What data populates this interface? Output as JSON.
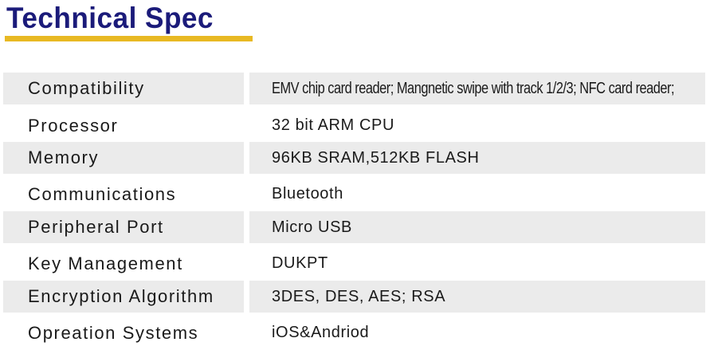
{
  "title": "Technical Spec",
  "colors": {
    "title": "#1b1b7a",
    "underline": "#e8b923",
    "row_shade": "#ebebeb"
  },
  "specs": [
    {
      "label": "Compatibility",
      "value": "EMV chip card reader; Mangnetic swipe with track 1/2/3; NFC card reader;"
    },
    {
      "label": "Processor",
      "value": "32 bit ARM CPU"
    },
    {
      "label": "Memory",
      "value": "96KB SRAM,512KB FLASH"
    },
    {
      "label": "Communications",
      "value": "Bluetooth"
    },
    {
      "label": "Peripheral Port",
      "value": "Micro USB"
    },
    {
      "label": "Key Management",
      "value": "DUKPT"
    },
    {
      "label": "Encryption Algorithm",
      "value": "3DES, DES, AES; RSA"
    },
    {
      "label": "Opreation Systems",
      "value": "iOS&Andriod"
    }
  ]
}
